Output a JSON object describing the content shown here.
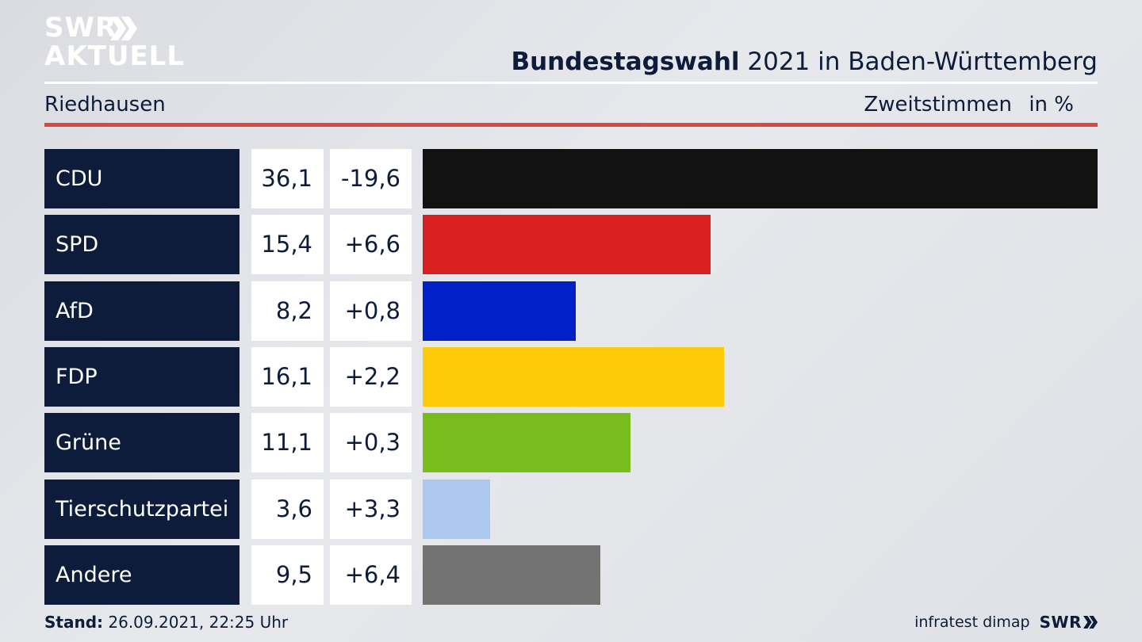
{
  "logo": {
    "line1": "SWR",
    "line2": "AKTUELL"
  },
  "header": {
    "title_bold": "Bundestagswahl",
    "title_rest": "2021 in Baden-Württemberg",
    "location": "Riedhausen",
    "measure": "Zweitstimmen",
    "unit": "in %"
  },
  "footer": {
    "stand_label": "Stand:",
    "stand_value": "26.09.2021, 22:25 Uhr",
    "source": "infratest dimap",
    "brand": "SWR"
  },
  "colors": {
    "navy": "#0d1c3a",
    "accent_red": "#d94a3e"
  },
  "chart_data": {
    "type": "bar",
    "orientation": "horizontal",
    "categories": [
      "CDU",
      "SPD",
      "AfD",
      "FDP",
      "Grüne",
      "Tierschutzpartei",
      "Andere"
    ],
    "series": [
      {
        "values": [
          36.1,
          15.4,
          8.2,
          16.1,
          11.1,
          3.6,
          9.5
        ]
      }
    ],
    "value_labels": [
      "36,1",
      "15,4",
      "8,2",
      "16,1",
      "11,1",
      "3,6",
      "9,5"
    ],
    "change_labels": [
      "-19,6",
      "+6,6",
      "+0,8",
      "+2,2",
      "+0,3",
      "+3,3",
      "+6,4"
    ],
    "changes": [
      -19.6,
      6.6,
      0.8,
      2.2,
      0.3,
      3.3,
      6.4
    ],
    "bar_colors": [
      "#121212",
      "#d92020",
      "#0021c8",
      "#fecb09",
      "#78bd1d",
      "#adc9f0",
      "#737373"
    ],
    "xlim": [
      0,
      36.1
    ],
    "grid": false
  }
}
